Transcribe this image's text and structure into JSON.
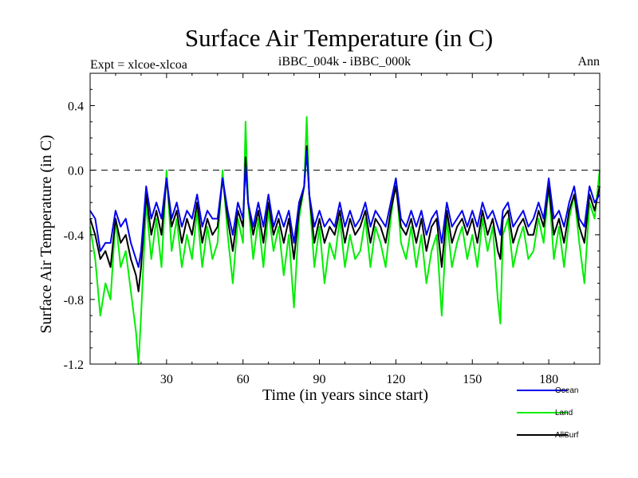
{
  "chart_data": {
    "type": "line",
    "title": "Surface Air Temperature (in C)",
    "subtitle_left": "Expt = xlcoe-xlcoa",
    "subtitle_center": "iBBC_004k - iBBC_000k",
    "subtitle_right": "Ann",
    "xlabel": "Time (in years since start)",
    "ylabel": "Surface Air Temperature (in C)",
    "xlim": [
      0,
      200
    ],
    "ylim": [
      -1.2,
      0.6
    ],
    "xticks": [
      30,
      60,
      90,
      120,
      150,
      180
    ],
    "xtick_labels": [
      "30",
      "60",
      "90",
      "120",
      "150",
      "180"
    ],
    "yticks": [
      -1.2,
      -0.8,
      -0.4,
      0.0,
      0.4
    ],
    "ytick_labels": [
      "-1.2",
      "-0.8",
      "-0.4",
      "0.0",
      "0.4"
    ],
    "reference_line": 0.0,
    "series": [
      {
        "name": "Land",
        "color": "#00ee00",
        "x": [
          0,
          2,
          4,
          6,
          8,
          10,
          12,
          14,
          16,
          18,
          19,
          20,
          22,
          24,
          26,
          28,
          30,
          32,
          34,
          36,
          38,
          40,
          42,
          44,
          46,
          48,
          50,
          52,
          54,
          56,
          58,
          60,
          61,
          62,
          64,
          66,
          68,
          70,
          72,
          74,
          76,
          78,
          80,
          82,
          84,
          85,
          86,
          88,
          90,
          92,
          94,
          96,
          98,
          100,
          102,
          104,
          106,
          108,
          110,
          112,
          114,
          116,
          118,
          120,
          122,
          124,
          126,
          128,
          130,
          132,
          134,
          136,
          138,
          140,
          142,
          144,
          146,
          148,
          150,
          152,
          154,
          156,
          158,
          160,
          161,
          162,
          164,
          166,
          168,
          170,
          172,
          174,
          176,
          178,
          180,
          182,
          184,
          186,
          188,
          190,
          192,
          194,
          196,
          198,
          200
        ],
        "values": [
          -0.35,
          -0.55,
          -0.9,
          -0.7,
          -0.8,
          -0.3,
          -0.6,
          -0.5,
          -0.75,
          -1.0,
          -1.2,
          -0.9,
          -0.2,
          -0.55,
          -0.3,
          -0.6,
          0.0,
          -0.5,
          -0.3,
          -0.6,
          -0.4,
          -0.55,
          -0.25,
          -0.6,
          -0.35,
          -0.55,
          -0.45,
          0.0,
          -0.4,
          -0.7,
          -0.3,
          -0.45,
          0.3,
          -0.2,
          -0.55,
          -0.3,
          -0.6,
          -0.25,
          -0.5,
          -0.35,
          -0.65,
          -0.4,
          -0.85,
          -0.3,
          -0.1,
          0.33,
          -0.15,
          -0.6,
          -0.35,
          -0.7,
          -0.45,
          -0.55,
          -0.3,
          -0.6,
          -0.4,
          -0.55,
          -0.5,
          -0.3,
          -0.6,
          -0.35,
          -0.45,
          -0.6,
          -0.3,
          -0.05,
          -0.45,
          -0.55,
          -0.35,
          -0.6,
          -0.4,
          -0.7,
          -0.5,
          -0.4,
          -0.9,
          -0.3,
          -0.6,
          -0.45,
          -0.35,
          -0.55,
          -0.4,
          -0.6,
          -0.3,
          -0.5,
          -0.35,
          -0.8,
          -0.95,
          -0.4,
          -0.3,
          -0.6,
          -0.45,
          -0.35,
          -0.55,
          -0.5,
          -0.3,
          -0.45,
          -0.1,
          -0.55,
          -0.35,
          -0.6,
          -0.3,
          -0.15,
          -0.45,
          -0.7,
          -0.2,
          -0.3,
          0.0
        ]
      },
      {
        "name": "AllSurf",
        "color": "#000000",
        "x": [
          0,
          2,
          4,
          6,
          8,
          10,
          12,
          14,
          16,
          18,
          19,
          20,
          22,
          24,
          26,
          28,
          30,
          32,
          34,
          36,
          38,
          40,
          42,
          44,
          46,
          48,
          50,
          52,
          54,
          56,
          58,
          60,
          61,
          62,
          64,
          66,
          68,
          70,
          72,
          74,
          76,
          78,
          80,
          82,
          84,
          85,
          86,
          88,
          90,
          92,
          94,
          96,
          98,
          100,
          102,
          104,
          106,
          108,
          110,
          112,
          114,
          116,
          118,
          120,
          122,
          124,
          126,
          128,
          130,
          132,
          134,
          136,
          138,
          140,
          142,
          144,
          146,
          148,
          150,
          152,
          154,
          156,
          158,
          160,
          161,
          162,
          164,
          166,
          168,
          170,
          172,
          174,
          176,
          178,
          180,
          182,
          184,
          186,
          188,
          190,
          192,
          194,
          196,
          198,
          200
        ],
        "values": [
          -0.3,
          -0.4,
          -0.55,
          -0.5,
          -0.6,
          -0.3,
          -0.45,
          -0.4,
          -0.55,
          -0.65,
          -0.75,
          -0.6,
          -0.15,
          -0.4,
          -0.25,
          -0.4,
          -0.05,
          -0.35,
          -0.25,
          -0.45,
          -0.3,
          -0.4,
          -0.2,
          -0.45,
          -0.3,
          -0.4,
          -0.35,
          -0.05,
          -0.3,
          -0.5,
          -0.25,
          -0.35,
          0.08,
          -0.2,
          -0.4,
          -0.25,
          -0.45,
          -0.2,
          -0.4,
          -0.3,
          -0.45,
          -0.3,
          -0.55,
          -0.25,
          -0.1,
          0.15,
          -0.15,
          -0.45,
          -0.3,
          -0.45,
          -0.35,
          -0.4,
          -0.25,
          -0.45,
          -0.3,
          -0.4,
          -0.35,
          -0.25,
          -0.45,
          -0.3,
          -0.35,
          -0.45,
          -0.25,
          -0.1,
          -0.35,
          -0.4,
          -0.3,
          -0.45,
          -0.3,
          -0.5,
          -0.35,
          -0.3,
          -0.6,
          -0.25,
          -0.45,
          -0.35,
          -0.3,
          -0.4,
          -0.3,
          -0.45,
          -0.25,
          -0.4,
          -0.3,
          -0.5,
          -0.55,
          -0.3,
          -0.25,
          -0.45,
          -0.35,
          -0.3,
          -0.4,
          -0.4,
          -0.25,
          -0.35,
          -0.1,
          -0.4,
          -0.3,
          -0.45,
          -0.25,
          -0.15,
          -0.35,
          -0.45,
          -0.15,
          -0.25,
          -0.1
        ]
      },
      {
        "name": "Ocean",
        "color": "#0000ee",
        "x": [
          0,
          2,
          4,
          6,
          8,
          10,
          12,
          14,
          16,
          18,
          19,
          20,
          22,
          24,
          26,
          28,
          30,
          32,
          34,
          36,
          38,
          40,
          42,
          44,
          46,
          48,
          50,
          52,
          54,
          56,
          58,
          60,
          61,
          62,
          64,
          66,
          68,
          70,
          72,
          74,
          76,
          78,
          80,
          82,
          84,
          85,
          86,
          88,
          90,
          92,
          94,
          96,
          98,
          100,
          102,
          104,
          106,
          108,
          110,
          112,
          114,
          116,
          118,
          120,
          122,
          124,
          126,
          128,
          130,
          132,
          134,
          136,
          138,
          140,
          142,
          144,
          146,
          148,
          150,
          152,
          154,
          156,
          158,
          160,
          161,
          162,
          164,
          166,
          168,
          170,
          172,
          174,
          176,
          178,
          180,
          182,
          184,
          186,
          188,
          190,
          192,
          194,
          196,
          198,
          200
        ],
        "values": [
          -0.25,
          -0.3,
          -0.5,
          -0.45,
          -0.45,
          -0.25,
          -0.35,
          -0.3,
          -0.45,
          -0.55,
          -0.6,
          -0.5,
          -0.1,
          -0.3,
          -0.2,
          -0.3,
          -0.05,
          -0.3,
          -0.2,
          -0.35,
          -0.25,
          -0.3,
          -0.15,
          -0.35,
          -0.25,
          -0.3,
          -0.3,
          -0.05,
          -0.25,
          -0.4,
          -0.2,
          -0.3,
          0.02,
          -0.2,
          -0.35,
          -0.2,
          -0.35,
          -0.15,
          -0.35,
          -0.25,
          -0.35,
          -0.25,
          -0.45,
          -0.2,
          -0.1,
          0.12,
          -0.15,
          -0.35,
          -0.25,
          -0.35,
          -0.3,
          -0.35,
          -0.2,
          -0.35,
          -0.25,
          -0.35,
          -0.3,
          -0.2,
          -0.35,
          -0.25,
          -0.3,
          -0.35,
          -0.2,
          -0.05,
          -0.3,
          -0.35,
          -0.25,
          -0.35,
          -0.25,
          -0.4,
          -0.3,
          -0.25,
          -0.45,
          -0.2,
          -0.35,
          -0.3,
          -0.25,
          -0.35,
          -0.25,
          -0.35,
          -0.2,
          -0.3,
          -0.25,
          -0.35,
          -0.4,
          -0.25,
          -0.2,
          -0.35,
          -0.3,
          -0.25,
          -0.35,
          -0.3,
          -0.2,
          -0.3,
          -0.05,
          -0.3,
          -0.25,
          -0.35,
          -0.2,
          -0.1,
          -0.3,
          -0.35,
          -0.1,
          -0.2,
          -0.15
        ]
      }
    ],
    "legend": [
      {
        "label": "Ocean",
        "color": "#0000ee"
      },
      {
        "label": "Land",
        "color": "#00ee00"
      },
      {
        "label": "AllSurf",
        "color": "#000000"
      }
    ]
  }
}
